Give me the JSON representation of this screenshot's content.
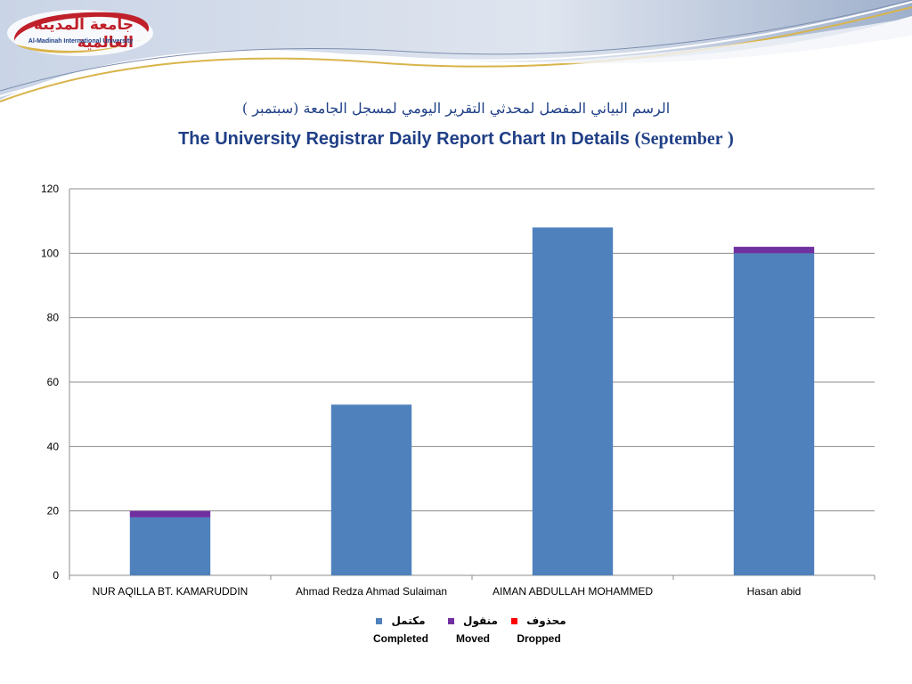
{
  "logo": {
    "name_ar": "جامعة المدينة العالمية",
    "name_en": "Al-Madinah International University"
  },
  "title_ar": "الرسم البياني المفصل لمحدثي التقرير اليومي لمسجل الجامعة (سبتمبر )",
  "title_en": {
    "main": "The University Registrar Daily Report Chart In Details ",
    "open": "(",
    "month": "September",
    "close": " )"
  },
  "colors": {
    "completed": "#4f81bd",
    "moved": "#7030a0",
    "dropped": "#ff0000",
    "title": "#1f3f86",
    "grid": "#8c8c8c"
  },
  "chart_data": {
    "type": "bar",
    "stacked": true,
    "categories": [
      "NUR AQILLA BT. KAMARUDDIN",
      "Ahmad Redza Ahmad Sulaiman",
      "AIMAN ABDULLAH MOHAMMED",
      "Hasan abid"
    ],
    "series": [
      {
        "name": "Completed",
        "name_ar": "مكتمل",
        "color": "#4f81bd",
        "values": [
          18,
          53,
          108,
          100
        ]
      },
      {
        "name": "Moved",
        "name_ar": "منقول",
        "color": "#7030a0",
        "values": [
          2,
          0,
          0,
          2
        ]
      },
      {
        "name": "Dropped",
        "name_ar": "محذوف",
        "color": "#ff0000",
        "values": [
          0,
          0,
          0,
          0
        ]
      }
    ],
    "ylim": [
      0,
      120
    ],
    "yticks": [
      "0",
      "20",
      "40",
      "60",
      "80",
      "100",
      "120"
    ],
    "grid": true,
    "legend_position": "bottom"
  }
}
